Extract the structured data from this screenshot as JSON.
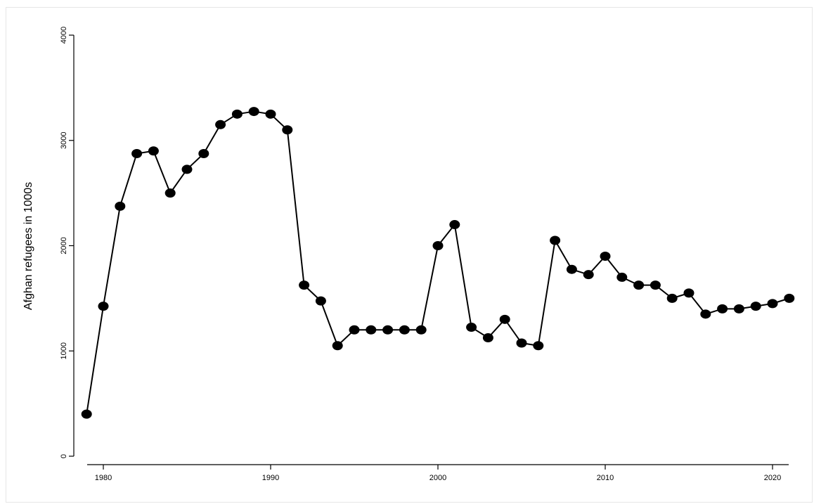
{
  "chart_data": {
    "type": "line",
    "title": "",
    "xlabel": "",
    "ylabel": "Afghan refugees in 1000s",
    "xlim": [
      1978,
      2022
    ],
    "ylim": [
      0,
      4000
    ],
    "x_ticks": [
      1980,
      1990,
      2000,
      2010,
      2020
    ],
    "y_ticks": [
      0,
      1000,
      2000,
      3000,
      4000
    ],
    "grid": false,
    "legend": "none",
    "series": [
      {
        "color": "#000000",
        "marker": "circle",
        "x": [
          1979,
          1980,
          1981,
          1982,
          1983,
          1984,
          1985,
          1986,
          1987,
          1988,
          1989,
          1990,
          1991,
          1992,
          1993,
          1994,
          1995,
          1996,
          1997,
          1998,
          1999,
          2000,
          2001,
          2002,
          2003,
          2004,
          2005,
          2006,
          2007,
          2008,
          2009,
          2010,
          2011,
          2012,
          2013,
          2014,
          2015,
          2016,
          2017,
          2018,
          2019,
          2020,
          2021
        ],
        "y": [
          400,
          1425,
          2375,
          2875,
          2900,
          2500,
          2725,
          2875,
          3150,
          3250,
          3275,
          3250,
          3100,
          1625,
          1475,
          1050,
          1200,
          1200,
          1200,
          1200,
          1200,
          2000,
          2200,
          1225,
          1125,
          1300,
          1075,
          1050,
          2050,
          1775,
          1725,
          1900,
          1700,
          1625,
          1625,
          1500,
          1550,
          1350,
          1400,
          1400,
          1425,
          1450,
          1500
        ]
      }
    ]
  }
}
